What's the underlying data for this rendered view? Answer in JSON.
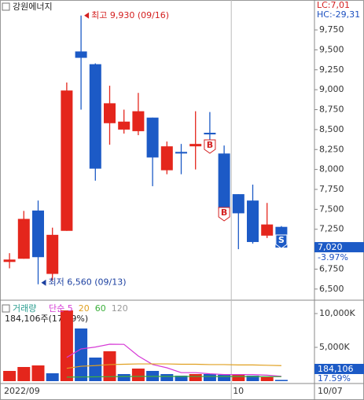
{
  "title": "강원에너지",
  "lc": "LC:7,01",
  "hc": "HC:-29,31",
  "chart_data": [
    {
      "type": "candlestick",
      "open": [
        6840,
        6880,
        7485,
        6690,
        7230,
        9480,
        9320,
        8580,
        8500,
        8480,
        8650,
        7990,
        8220,
        8290,
        8460,
        8200,
        7690,
        7610,
        7170,
        7280
      ],
      "high": [
        6950,
        7480,
        7610,
        7270,
        9090,
        9930,
        9330,
        9050,
        8750,
        8960,
        8650,
        8350,
        8320,
        8730,
        8720,
        8300,
        7690,
        7810,
        7580,
        7290
      ],
      "low": [
        6760,
        6880,
        6560,
        6610,
        7230,
        8750,
        7860,
        8310,
        8450,
        8430,
        7790,
        7940,
        7940,
        8000,
        8350,
        7510,
        7000,
        7070,
        7140,
        7020
      ],
      "close": [
        6870,
        7380,
        6900,
        7180,
        8990,
        9400,
        8010,
        8830,
        8600,
        8730,
        8150,
        8290,
        8200,
        8320,
        8440,
        7510,
        7450,
        7090,
        7310,
        7020
      ],
      "up_color": "#e4261c",
      "down_color": "#1c5ac6",
      "ylim": [
        6380,
        10125
      ],
      "yticks": [
        {
          "value": 6500,
          "label": "6,500"
        },
        {
          "value": 6750,
          "label": "6,750"
        },
        {
          "value": 7000,
          "label": "7,000"
        },
        {
          "value": 7250,
          "label": "7,250"
        },
        {
          "value": 7500,
          "label": "7,500"
        },
        {
          "value": 7750,
          "label": "7,750"
        },
        {
          "value": 8000,
          "label": "8,000"
        },
        {
          "value": 8250,
          "label": "8,250"
        },
        {
          "value": 8500,
          "label": "8,500"
        },
        {
          "value": 8750,
          "label": "8,750"
        },
        {
          "value": 9000,
          "label": "9,000"
        },
        {
          "value": 9250,
          "label": "9,250"
        },
        {
          "value": 9500,
          "label": "9,500"
        },
        {
          "value": 9750,
          "label": "9,750"
        }
      ],
      "annotations": [
        {
          "text": "최고 9,930 (09/16)",
          "color": "#d42020"
        },
        {
          "text": "최저 6,560 (09/13)",
          "color": "#1b3fa0"
        }
      ],
      "signals": [
        "B",
        "B",
        "S"
      ],
      "current_price": {
        "value": 7020,
        "label": "7,020"
      },
      "change": "-3.97%"
    },
    {
      "type": "bar",
      "name": "거래량",
      "name_color": "#2a9d8f",
      "values": [
        1512,
        2093,
        2326,
        1163,
        10465,
        7791,
        3488,
        4419,
        1047,
        1860,
        1512,
        1047,
        814,
        1047,
        1047,
        930,
        1047,
        814,
        581,
        184.106
      ],
      "colors": [
        "#e4261c",
        "#e4261c",
        "#e4261c",
        "#1c5ac6",
        "#e4261c",
        "#1c5ac6",
        "#1c5ac6",
        "#e4261c",
        "#1c5ac6",
        "#e4261c",
        "#1c5ac6",
        "#1c5ac6",
        "#1c5ac6",
        "#e4261c",
        "#1c5ac6",
        "#1c5ac6",
        "#e4261c",
        "#1c5ac6",
        "#e4261c",
        "#1c5ac6"
      ],
      "series": [
        {
          "name": "단순 5",
          "color": "#d63ad6",
          "values": [
            null,
            null,
            null,
            null,
            3512,
            4768,
            5047,
            5465,
            5442,
            3721,
            2465,
            1977,
            1256,
            1256,
            1093,
            977,
            977,
            977,
            884,
            711
          ]
        },
        {
          "name": "20",
          "color": "#e0a020",
          "values": [
            null,
            null,
            null,
            null,
            1900,
            2200,
            2300,
            2450,
            2500,
            2550,
            2550,
            2550,
            2500,
            2500,
            2450,
            2450,
            2400,
            2400,
            2350,
            2300
          ]
        },
        {
          "name": "60",
          "color": "#3cb03c",
          "values": [
            null,
            null,
            null,
            null,
            600,
            620,
            640,
            660,
            680,
            700,
            700,
            700,
            700,
            690,
            690,
            680,
            680,
            670,
            670,
            660
          ]
        },
        {
          "name": "120",
          "color": "#999999",
          "values": [
            null,
            null,
            null,
            null,
            null,
            null,
            null,
            null,
            null,
            null,
            null,
            null,
            null,
            null,
            null,
            null,
            null,
            null,
            null,
            null
          ]
        }
      ],
      "volume_label": "184,106주(17.59%)",
      "last_volume": "184,106",
      "last_ratio": "17.59%",
      "ylim": [
        0,
        11630
      ],
      "yticks": [
        {
          "value": 10000,
          "label": "10,000K"
        },
        {
          "value": 5000,
          "label": "5,000K"
        }
      ],
      "xticks": [
        {
          "value": 0,
          "label": "2022/09"
        },
        {
          "value": 16,
          "label": "10"
        }
      ],
      "last_label": "10/07"
    }
  ]
}
